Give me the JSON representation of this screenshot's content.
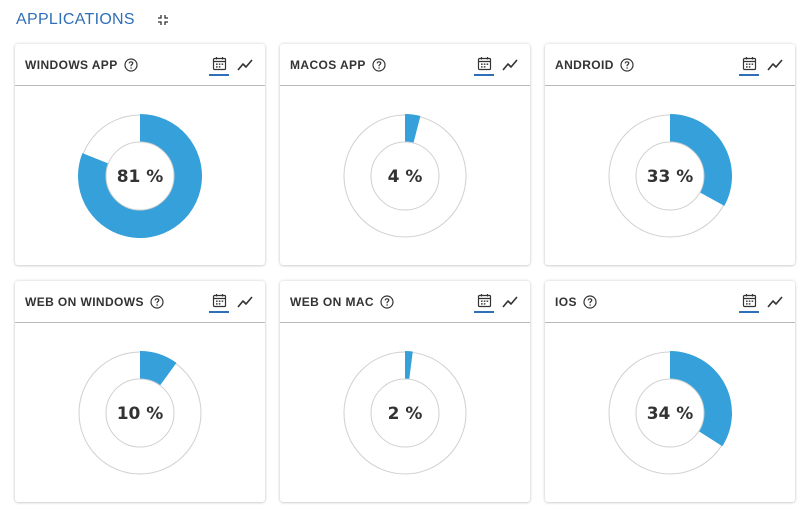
{
  "header": {
    "title": "APPLICATIONS",
    "collapse_icon": "collapse-icon"
  },
  "colors": {
    "accent": "#2f6fb7",
    "donut_fill": "#35a0d9",
    "donut_track": "#d0d0d0"
  },
  "cards": [
    {
      "title": "WINDOWS APP",
      "percent": 81,
      "label": "81 %"
    },
    {
      "title": "MACOS APP",
      "percent": 4,
      "label": "4 %"
    },
    {
      "title": "ANDROID",
      "percent": 33,
      "label": "33 %"
    },
    {
      "title": "WEB ON WINDOWS",
      "percent": 10,
      "label": "10 %"
    },
    {
      "title": "WEB ON MAC",
      "percent": 2,
      "label": "2 %"
    },
    {
      "title": "IOS",
      "percent": 34,
      "label": "34 %"
    }
  ],
  "card_icons": {
    "help": "help-circle-icon",
    "calendar": "calendar-icon",
    "trend": "trend-line-icon"
  }
}
